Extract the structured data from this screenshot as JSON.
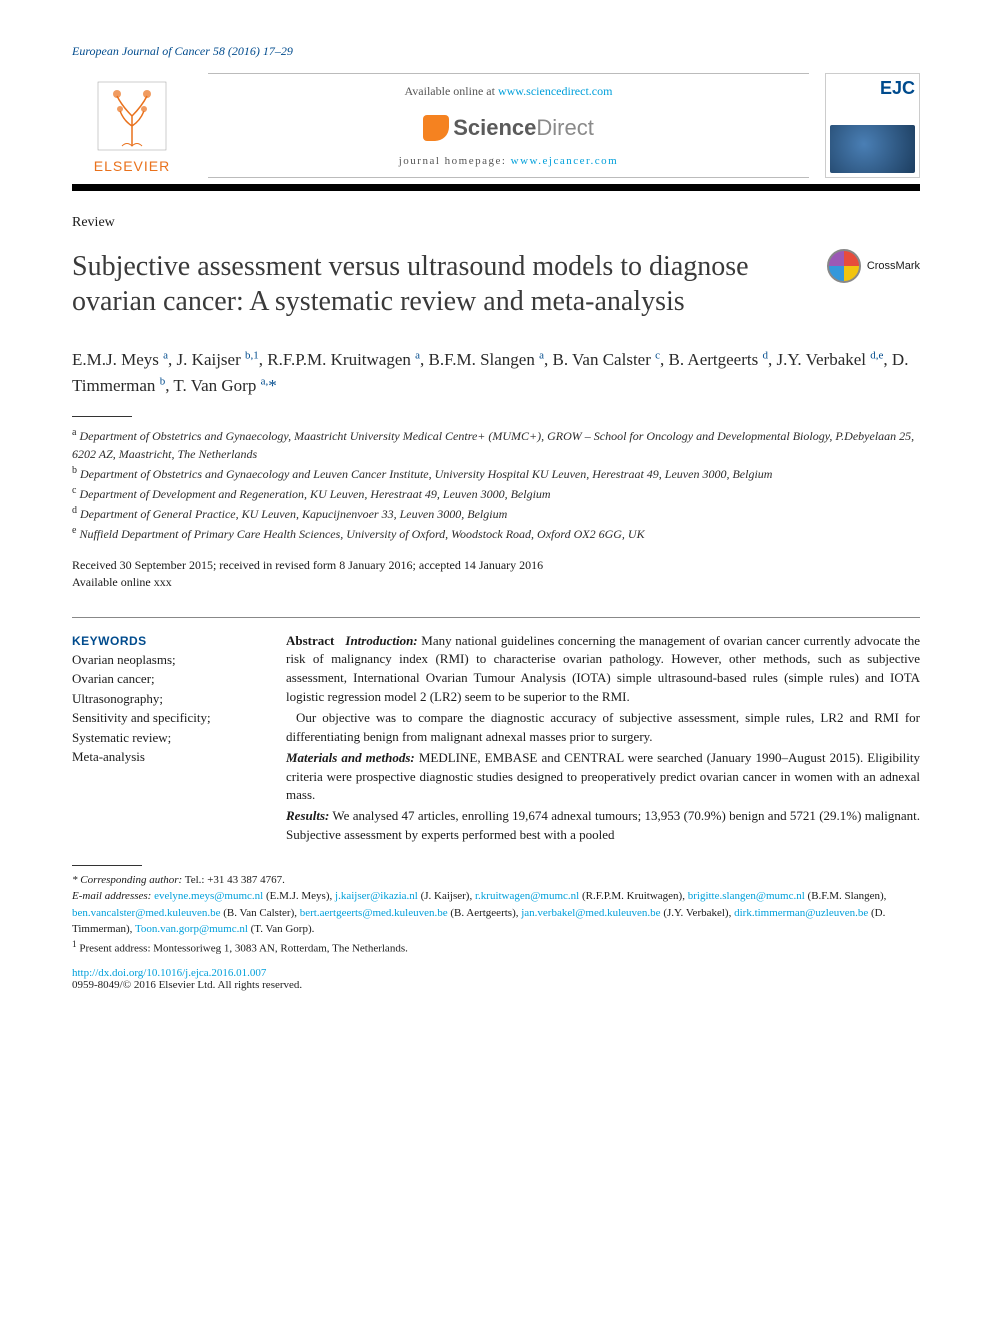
{
  "journal_ref": "European Journal of Cancer 58 (2016) 17–29",
  "header": {
    "elsevier": "ELSEVIER",
    "available_prefix": "Available online at ",
    "available_link": "www.sciencedirect.com",
    "sd_brand_a": "Science",
    "sd_brand_b": "Direct",
    "homepage_prefix": "journal homepage: ",
    "homepage_link": "www.ejcancer.com",
    "cover_abbrev": "EJC"
  },
  "article_type": "Review",
  "title": "Subjective assessment versus ultrasound models to diagnose ovarian cancer: A systematic review and meta-analysis",
  "crossmark_label": "CrossMark",
  "authors_html": "E.M.J. Meys <sup>a</sup>, J. Kaijser <sup>b,1</sup>, R.F.P.M. Kruitwagen <sup>a</sup>, B.F.M. Slangen <sup>a</sup>, B. Van Calster <sup>c</sup>, B. Aertgeerts <sup>d</sup>, J.Y. Verbakel <sup>d,e</sup>, D. Timmerman <sup>b</sup>, T. Van Gorp <sup>a,</sup><span class='star'>*</span>",
  "affiliations": {
    "a": "Department of Obstetrics and Gynaecology, Maastricht University Medical Centre+ (MUMC+), GROW – School for Oncology and Developmental Biology, P.Debyelaan 25, 6202 AZ, Maastricht, The Netherlands",
    "b": "Department of Obstetrics and Gynaecology and Leuven Cancer Institute, University Hospital KU Leuven, Herestraat 49, Leuven 3000, Belgium",
    "c": "Department of Development and Regeneration, KU Leuven, Herestraat 49, Leuven 3000, Belgium",
    "d": "Department of General Practice, KU Leuven, Kapucijnenvoer 33, Leuven 3000, Belgium",
    "e": "Nuffield Department of Primary Care Health Sciences, University of Oxford, Woodstock Road, Oxford OX2 6GG, UK"
  },
  "dates": {
    "received": "Received 30 September 2015; received in revised form 8 January 2016; accepted 14 January 2016",
    "online": "Available online xxx"
  },
  "keywords": {
    "head": "KEYWORDS",
    "list": "Ovarian neoplasms; Ovarian cancer; Ultrasonography; Sensitivity and specificity; Systematic review; Meta-analysis"
  },
  "abstract": {
    "label": "Abstract",
    "intro_head": "Introduction:",
    "intro_body": " Many national guidelines concerning the management of ovarian cancer currently advocate the risk of malignancy index (RMI) to characterise ovarian pathology. However, other methods, such as subjective assessment, International Ovarian Tumour Analysis (IOTA) simple ultrasound-based rules (simple rules) and IOTA logistic regression model 2 (LR2) seem to be superior to the RMI.",
    "objective": "Our objective was to compare the diagnostic accuracy of subjective assessment, simple rules, LR2 and RMI for differentiating benign from malignant adnexal masses prior to surgery.",
    "mm_head": "Materials and methods:",
    "mm_body": " MEDLINE, EMBASE and CENTRAL were searched (January 1990–August 2015). Eligibility criteria were prospective diagnostic studies designed to preoperatively predict ovarian cancer in women with an adnexal mass.",
    "res_head": "Results:",
    "res_body": " We analysed 47 articles, enrolling 19,674 adnexal tumours; 13,953 (70.9%) benign and 5721 (29.1%) malignant. Subjective assessment by experts performed best with a pooled"
  },
  "footnotes": {
    "corr_label": "* Corresponding author:",
    "corr_tel": " Tel.: +31 43 387 4767.",
    "email_label": "E-mail addresses: ",
    "emails": [
      {
        "addr": "evelyne.meys@mumc.nl",
        "who": "(E.M.J. Meys)"
      },
      {
        "addr": "j.kaijser@ikazia.nl",
        "who": "(J. Kaijser)"
      },
      {
        "addr": "r.kruitwagen@mumc.nl",
        "who": "(R.F.P.M. Kruitwagen)"
      },
      {
        "addr": "brigitte.slangen@mumc.nl",
        "who": "(B.F.M. Slangen)"
      },
      {
        "addr": "ben.vancalster@med.kuleuven.be",
        "who": "(B. Van Calster)"
      },
      {
        "addr": "bert.aertgeerts@med.kuleuven.be",
        "who": "(B. Aertgeerts)"
      },
      {
        "addr": "jan.verbakel@med.kuleuven.be",
        "who": "(J.Y. Verbakel)"
      },
      {
        "addr": "dirk.timmerman@uzleuven.be",
        "who": "(D. Timmerman)"
      },
      {
        "addr": "Toon.van.gorp@mumc.nl",
        "who": "(T. Van Gorp)"
      }
    ],
    "present": "Present address: Montessoriweg 1, 3083 AN, Rotterdam, The Netherlands.",
    "present_sup": "1"
  },
  "doi": "http://dx.doi.org/10.1016/j.ejca.2016.01.007",
  "issn_copyright": "0959-8049/© 2016 Elsevier Ltd. All rights reserved.",
  "colors": {
    "link": "#009fda",
    "brand_blue": "#004b8d",
    "elsevier_orange": "#e9711c",
    "sd_orange": "#f58220",
    "text": "#1a1a1a",
    "rule": "#888888"
  },
  "typography": {
    "body_family": "Georgia, Times New Roman, serif",
    "title_size_pt": 21,
    "authors_size_pt": 13,
    "body_size_pt": 10,
    "footnote_size_pt": 8
  }
}
